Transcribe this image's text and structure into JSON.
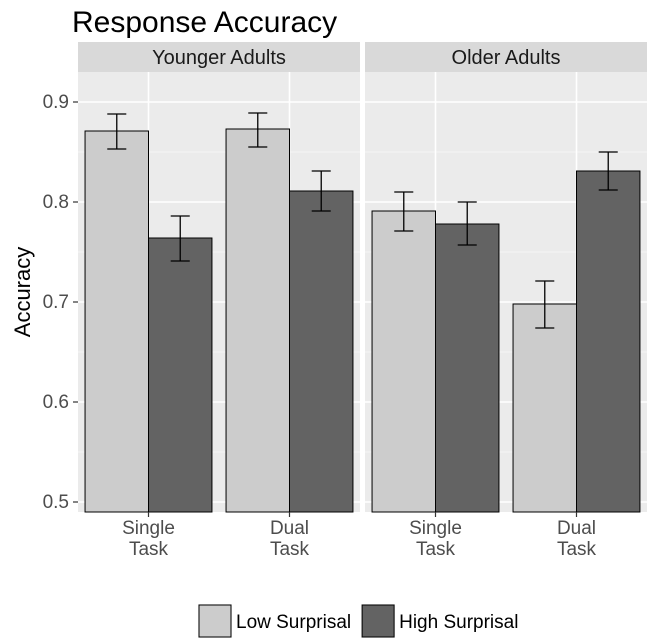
{
  "chart_data": {
    "type": "bar",
    "title": "Response Accuracy",
    "ylabel": "Accuracy",
    "xlabel": "",
    "ylim": [
      0.49,
      0.93
    ],
    "yticks": [
      "0.5",
      "0.6",
      "0.7",
      "0.8",
      "0.9"
    ],
    "ytick_values": [
      0.5,
      0.6,
      0.7,
      0.8,
      0.9
    ],
    "grid": true,
    "legend_position": "bottom",
    "categories": [
      "Single\nTask",
      "Dual\nTask"
    ],
    "series_names": [
      "Low Surprisal",
      "High Surprisal"
    ],
    "series_colors": [
      "#cccccc",
      "#636363"
    ],
    "panels": [
      {
        "label": "Younger Adults",
        "series": [
          {
            "name": "Low Surprisal",
            "values": [
              0.871,
              0.873
            ],
            "err_low": [
              0.853,
              0.855
            ],
            "err_high": [
              0.888,
              0.889
            ]
          },
          {
            "name": "High Surprisal",
            "values": [
              0.764,
              0.811
            ],
            "err_low": [
              0.741,
              0.791
            ],
            "err_high": [
              0.786,
              0.831
            ]
          }
        ]
      },
      {
        "label": "Older Adults",
        "series": [
          {
            "name": "Low Surprisal",
            "values": [
              0.791,
              0.698
            ],
            "err_low": [
              0.771,
              0.674
            ],
            "err_high": [
              0.81,
              0.721
            ]
          },
          {
            "name": "High Surprisal",
            "values": [
              0.778,
              0.831
            ],
            "err_low": [
              0.757,
              0.812
            ],
            "err_high": [
              0.8,
              0.85
            ]
          }
        ]
      }
    ]
  }
}
